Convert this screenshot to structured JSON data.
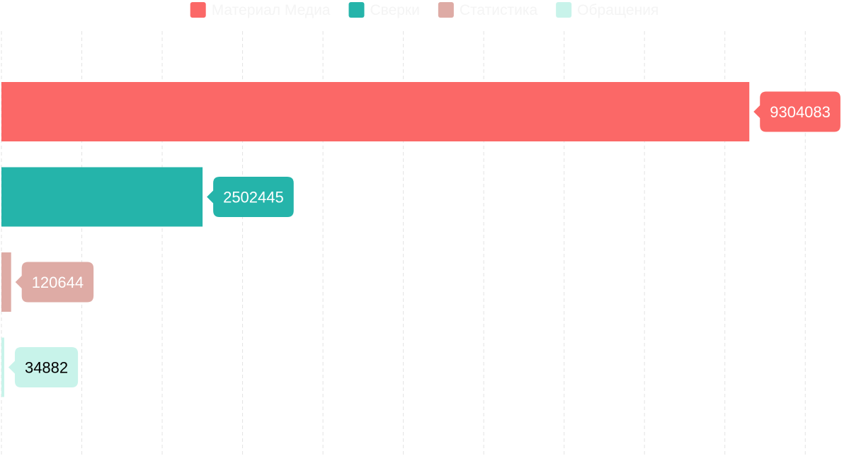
{
  "chart_data": {
    "type": "bar",
    "orientation": "horizontal",
    "series": [
      {
        "name": "Материал Медиа",
        "value": 9304083,
        "color": "#fb6867",
        "label_text_color": "#ffffff"
      },
      {
        "name": "Сверки",
        "value": 2502445,
        "color": "#25b4aa",
        "label_text_color": "#ffffff"
      },
      {
        "name": "Статистика",
        "value": 120644,
        "color": "#deaba5",
        "label_text_color": "#ffffff"
      },
      {
        "name": "Обращения",
        "value": 34882,
        "color": "#c8f3ea",
        "label_text_color": "#000000"
      }
    ],
    "xlim": [
      0,
      10500000
    ],
    "grid": true,
    "legend_position": "top-center",
    "data_labels": true
  }
}
